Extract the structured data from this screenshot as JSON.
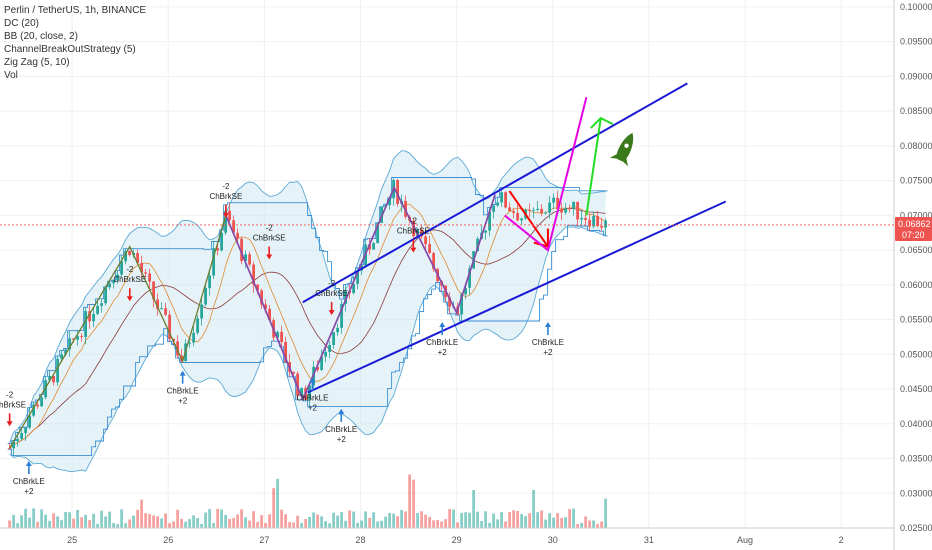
{
  "legend": {
    "title": "Perlin / TetherUS, 1h, BINANCE",
    "indicators": [
      "DC (20)",
      "BB (20, close, 2)",
      "ChannelBreakOutStrategy (5)",
      "Zig Zag (5, 10)",
      "Vol"
    ]
  },
  "price_badge": {
    "price": "0.06862",
    "countdown": "07:20"
  },
  "colors": {
    "up": "#26a69a",
    "down": "#ef5350",
    "zigzag": "#6b7d2e",
    "bb": "#5aa9d6",
    "dc": "#3b8fd4",
    "channel": "#1a1ad6",
    "arrow_down": "#ff0000",
    "arrow_path": "#e600e6",
    "arrow_up": "#22dd22",
    "rocket": "#3a7a1a"
  },
  "chart_data": {
    "type": "candlestick",
    "y_axis": {
      "min": 0.025,
      "max": 0.101,
      "ticks": [
        "0.10000",
        "0.09500",
        "0.09000",
        "0.08500",
        "0.08000",
        "0.07500",
        "0.07000",
        "0.06500",
        "0.06000",
        "0.05500",
        "0.05000",
        "0.04500",
        "0.04000",
        "0.03500",
        "0.03000",
        "0.02500"
      ],
      "tick_values": [
        0.1,
        0.095,
        0.09,
        0.085,
        0.08,
        0.075,
        0.07,
        0.065,
        0.06,
        0.055,
        0.05,
        0.045,
        0.04,
        0.035,
        0.03,
        0.025
      ]
    },
    "x_axis": {
      "labels": [
        "25",
        "26",
        "27",
        "28",
        "29",
        "30",
        "31",
        "Aug",
        "2"
      ],
      "label_times": [
        1.0,
        2.0,
        3.0,
        4.0,
        5.0,
        6.0,
        7.0,
        8.0,
        9.0
      ],
      "min": 0.25,
      "max": 9.55
    },
    "last_time": 6.55,
    "zigzag": [
      [
        0.35,
        0.0365
      ],
      [
        1.6,
        0.0655
      ],
      [
        2.15,
        0.049
      ],
      [
        2.6,
        0.07
      ],
      [
        3.4,
        0.0435
      ],
      [
        4.35,
        0.074
      ],
      [
        5.0,
        0.056
      ],
      [
        5.4,
        0.073
      ]
    ],
    "channel_lines": [
      {
        "from": [
          3.45,
          0.0445
        ],
        "to": [
          7.8,
          0.072
        ]
      },
      {
        "from": [
          3.4,
          0.0575
        ],
        "to": [
          7.4,
          0.089
        ]
      }
    ],
    "signals": [
      {
        "label": "ChBrkSE",
        "qty": "-2",
        "t": 0.35,
        "price": 0.0395,
        "dir": "short"
      },
      {
        "label": "ChBrkLE",
        "qty": "+2",
        "t": 0.55,
        "price": 0.0345,
        "dir": "long"
      },
      {
        "label": "ChBrkSE",
        "qty": "-2",
        "t": 1.6,
        "price": 0.0575,
        "dir": "short"
      },
      {
        "label": "ChBrkLE",
        "qty": "+2",
        "t": 2.15,
        "price": 0.0475,
        "dir": "long"
      },
      {
        "label": "ChBrkSE",
        "qty": "-2",
        "t": 2.6,
        "price": 0.0695,
        "dir": "short"
      },
      {
        "label": "ChBrkSE",
        "qty": "-2",
        "t": 3.05,
        "price": 0.0635,
        "dir": "short"
      },
      {
        "label": "ChBrkSE",
        "qty": "-2",
        "t": 3.7,
        "price": 0.0555,
        "dir": "short"
      },
      {
        "label": "ChBrkLE",
        "qty": "+2",
        "t": 3.5,
        "price": 0.0465,
        "dir": "long"
      },
      {
        "label": "ChBrkLE",
        "qty": "+2",
        "t": 3.8,
        "price": 0.042,
        "dir": "long"
      },
      {
        "label": "ChBrkSE",
        "qty": "-2",
        "t": 4.55,
        "price": 0.0645,
        "dir": "short"
      },
      {
        "label": "ChBrkLE",
        "qty": "+2",
        "t": 4.85,
        "price": 0.0545,
        "dir": "long"
      },
      {
        "label": "ChBrkLE",
        "qty": "+2",
        "t": 5.95,
        "price": 0.0545,
        "dir": "long"
      }
    ],
    "annotations": {
      "red_arrow": [
        [
          5.55,
          0.0735
        ],
        [
          5.95,
          0.0655
        ]
      ],
      "magenta_path": [
        [
          5.5,
          0.07
        ],
        [
          5.95,
          0.065
        ],
        [
          6.35,
          0.087
        ]
      ],
      "green_arrow": [
        [
          6.35,
          0.07
        ],
        [
          6.5,
          0.084
        ]
      ],
      "rocket": [
        6.75,
        0.0795
      ]
    }
  }
}
